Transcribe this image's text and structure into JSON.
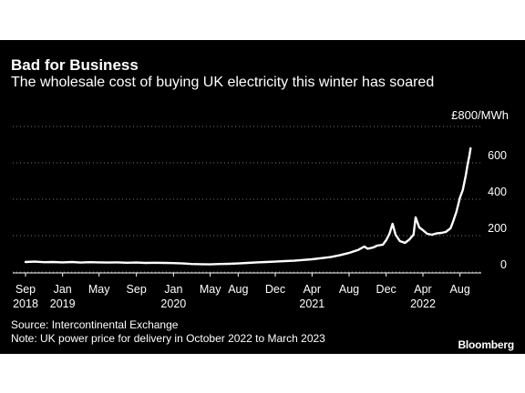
{
  "header": {
    "title": "Bad for Business",
    "subtitle": "The wholesale cost of buying UK electricity this winter has soared"
  },
  "footer": {
    "source": "Source: Intercontinental Exchange",
    "note": "Note: UK power price for delivery in October 2022 to March 2023",
    "brand": "Bloomberg"
  },
  "colors": {
    "background": "#000000",
    "line": "#ffffff",
    "gridline": "#777777",
    "text": "#ffffff"
  },
  "chart_data": {
    "type": "line",
    "title": "Bad for Business",
    "subtitle": "The wholesale cost of buying UK electricity this winter has soared",
    "ylabel": "£800/MWh",
    "ylim": [
      0,
      800
    ],
    "yticks": [
      0,
      200,
      400,
      600
    ],
    "xlim": [
      "2018-09-01",
      "2022-10-01"
    ],
    "grid": "horizontal-dotted",
    "x_tick_labels": [
      {
        "date": "2018-09-01",
        "lines": [
          "Sep",
          "2018"
        ]
      },
      {
        "date": "2019-01-01",
        "lines": [
          "Jan",
          "2019"
        ]
      },
      {
        "date": "2019-05-01",
        "lines": [
          "May"
        ]
      },
      {
        "date": "2019-09-01",
        "lines": [
          "Sep"
        ]
      },
      {
        "date": "2020-01-01",
        "lines": [
          "Jan",
          "2020"
        ]
      },
      {
        "date": "2020-05-01",
        "lines": [
          "May"
        ]
      },
      {
        "date": "2020-08-01",
        "lines": [
          "Aug"
        ]
      },
      {
        "date": "2020-12-01",
        "lines": [
          "Dec"
        ]
      },
      {
        "date": "2021-04-01",
        "lines": [
          "Apr",
          "2021"
        ]
      },
      {
        "date": "2021-08-01",
        "lines": [
          "Aug"
        ]
      },
      {
        "date": "2021-12-01",
        "lines": [
          "Dec"
        ]
      },
      {
        "date": "2022-04-01",
        "lines": [
          "Apr",
          "2022"
        ]
      },
      {
        "date": "2022-08-01",
        "lines": [
          "Aug"
        ]
      }
    ],
    "series": [
      {
        "points": [
          [
            "2018-09-01",
            55
          ],
          [
            "2018-10-01",
            57
          ],
          [
            "2018-11-01",
            54
          ],
          [
            "2018-12-01",
            55
          ],
          [
            "2019-01-01",
            53
          ],
          [
            "2019-02-01",
            55
          ],
          [
            "2019-03-01",
            52
          ],
          [
            "2019-04-01",
            54
          ],
          [
            "2019-05-01",
            53
          ],
          [
            "2019-06-01",
            52
          ],
          [
            "2019-07-01",
            53
          ],
          [
            "2019-08-01",
            51
          ],
          [
            "2019-09-01",
            52
          ],
          [
            "2019-10-01",
            50
          ],
          [
            "2019-11-01",
            51
          ],
          [
            "2019-12-01",
            50
          ],
          [
            "2020-01-01",
            49
          ],
          [
            "2020-02-01",
            47
          ],
          [
            "2020-03-01",
            44
          ],
          [
            "2020-04-01",
            43
          ],
          [
            "2020-05-01",
            42
          ],
          [
            "2020-06-01",
            44
          ],
          [
            "2020-07-01",
            45
          ],
          [
            "2020-08-01",
            47
          ],
          [
            "2020-09-01",
            50
          ],
          [
            "2020-10-01",
            53
          ],
          [
            "2020-11-01",
            55
          ],
          [
            "2020-12-01",
            57
          ],
          [
            "2021-01-01",
            60
          ],
          [
            "2021-02-01",
            62
          ],
          [
            "2021-03-01",
            66
          ],
          [
            "2021-04-01",
            70
          ],
          [
            "2021-05-01",
            76
          ],
          [
            "2021-06-01",
            82
          ],
          [
            "2021-07-01",
            92
          ],
          [
            "2021-08-01",
            105
          ],
          [
            "2021-09-01",
            122
          ],
          [
            "2021-09-20",
            140
          ],
          [
            "2021-10-01",
            128
          ],
          [
            "2021-10-20",
            135
          ],
          [
            "2021-11-01",
            145
          ],
          [
            "2021-11-20",
            150
          ],
          [
            "2021-12-01",
            175
          ],
          [
            "2021-12-12",
            210
          ],
          [
            "2021-12-22",
            265
          ],
          [
            "2022-01-01",
            205
          ],
          [
            "2022-01-15",
            170
          ],
          [
            "2022-02-01",
            160
          ],
          [
            "2022-02-15",
            178
          ],
          [
            "2022-03-01",
            205
          ],
          [
            "2022-03-08",
            300
          ],
          [
            "2022-03-20",
            245
          ],
          [
            "2022-04-01",
            230
          ],
          [
            "2022-04-15",
            210
          ],
          [
            "2022-05-01",
            205
          ],
          [
            "2022-05-15",
            212
          ],
          [
            "2022-06-01",
            215
          ],
          [
            "2022-06-15",
            220
          ],
          [
            "2022-07-01",
            240
          ],
          [
            "2022-07-10",
            280
          ],
          [
            "2022-07-20",
            330
          ],
          [
            "2022-08-01",
            410
          ],
          [
            "2022-08-10",
            450
          ],
          [
            "2022-08-20",
            530
          ],
          [
            "2022-08-26",
            590
          ],
          [
            "2022-09-01",
            640
          ],
          [
            "2022-09-05",
            680
          ]
        ]
      }
    ]
  }
}
